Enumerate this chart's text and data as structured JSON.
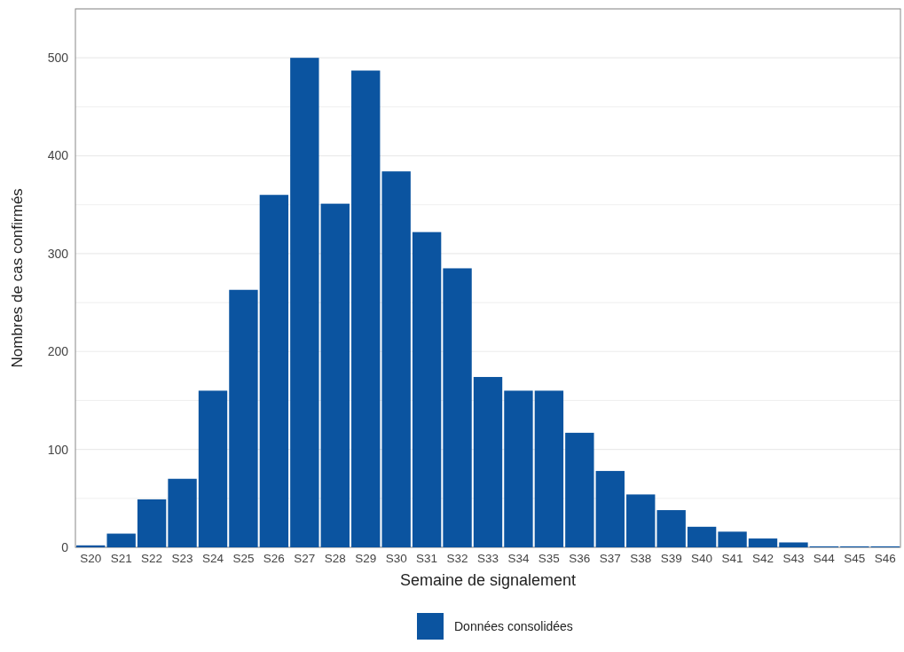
{
  "chart_data": {
    "type": "bar",
    "xlabel": "Semaine de signalement",
    "ylabel": "Nombres de cas confirmés",
    "categories": [
      "S20",
      "S21",
      "S22",
      "S23",
      "S24",
      "S25",
      "S26",
      "S27",
      "S28",
      "S29",
      "S30",
      "S31",
      "S32",
      "S33",
      "S34",
      "S35",
      "S36",
      "S37",
      "S38",
      "S39",
      "S40",
      "S41",
      "S42",
      "S43",
      "S44",
      "S45",
      "S46"
    ],
    "series": [
      {
        "name": "Données consolidées",
        "color": "#0b54a0",
        "values": [
          2,
          14,
          49,
          70,
          160,
          263,
          360,
          500,
          351,
          487,
          384,
          322,
          285,
          174,
          160,
          160,
          117,
          78,
          54,
          38,
          21,
          16,
          9,
          5,
          1,
          1,
          1
        ]
      }
    ],
    "ylim": [
      0,
      550
    ],
    "yticks": [
      0,
      {
        "value": 50,
        "label": null
      },
      100,
      {
        "value": 150,
        "label": null
      },
      200,
      {
        "value": 250,
        "label": null
      },
      300,
      {
        "value": 350,
        "label": null
      },
      400,
      {
        "value": 450,
        "label": null
      },
      500,
      {
        "value": 550,
        "label": null
      }
    ],
    "grid": "y",
    "legend": "bottom"
  }
}
